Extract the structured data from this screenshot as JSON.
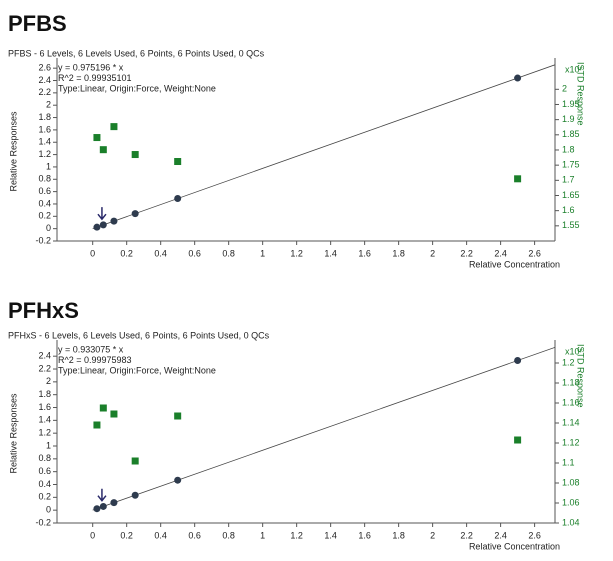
{
  "chart_data": [
    {
      "type": "scatter",
      "title": "PFBS",
      "subtitle": "PFBS - 6 Levels, 6 Levels Used, 6 Points, 6 Points Used, 0 QCs",
      "annotations": [
        "y = 0.975196 * x",
        "R^2 = 0.99935101",
        "Type:Linear, Origin:Force, Weight:None"
      ],
      "x_label": "Relative Concentration",
      "y_label": "Relative Responses",
      "y2_label": "ISTD Response",
      "y2_multiplier": "x10⁷",
      "x": [
        0.025,
        0.0625,
        0.125,
        0.25,
        0.5,
        2.5
      ],
      "series": [
        {
          "color": "#2e3b4e",
          "marker": "circle",
          "values": [
            0.024,
            0.061,
            0.122,
            0.244,
            0.488,
            2.44
          ]
        },
        {
          "color": "#1a7f2a",
          "marker": "square",
          "axis": "y2",
          "values": [
            1.841,
            1.801,
            1.877,
            1.785,
            1.762,
            1.705
          ]
        }
      ],
      "xlim": [
        -0.21,
        2.72
      ],
      "xticks": [
        0,
        0.2,
        0.4,
        0.6,
        0.8,
        1,
        1.2,
        1.4,
        1.6,
        1.8,
        2,
        2.2,
        2.4,
        2.6
      ],
      "ylim": [
        -0.2,
        2.7
      ],
      "yticks": [
        -0.2,
        0,
        0.2,
        0.4,
        0.6,
        0.8,
        1,
        1.2,
        1.4,
        1.6,
        1.8,
        2,
        2.2,
        2.4,
        2.6
      ],
      "y2lim": [
        1.5,
        2.09
      ],
      "y2ticks": [
        1.55,
        1.6,
        1.65,
        1.7,
        1.75,
        1.8,
        1.85,
        1.9,
        1.95,
        2
      ]
    },
    {
      "type": "scatter",
      "title": "PFHxS",
      "subtitle": "PFHxS - 6 Levels, 6 Levels Used, 6 Points, 6 Points Used, 0 QCs",
      "annotations": [
        "y = 0.933075 * x",
        "R^2 = 0.99975983",
        "Type:Linear, Origin:Force, Weight:None"
      ],
      "x_label": "Relative Concentration",
      "y_label": "Relative Responses",
      "y2_label": "ISTD Response",
      "y2_multiplier": "x10⁷",
      "x": [
        0.025,
        0.0625,
        0.125,
        0.25,
        0.5,
        2.5
      ],
      "series": [
        {
          "color": "#2e3b4e",
          "marker": "circle",
          "values": [
            0.023,
            0.058,
            0.117,
            0.233,
            0.467,
            2.333
          ]
        },
        {
          "color": "#1a7f2a",
          "marker": "square",
          "axis": "y2",
          "values": [
            1.138,
            1.155,
            1.149,
            1.102,
            1.147,
            1.123
          ]
        }
      ],
      "xlim": [
        -0.21,
        2.72
      ],
      "xticks": [
        0,
        0.2,
        0.4,
        0.6,
        0.8,
        1,
        1.2,
        1.4,
        1.6,
        1.8,
        2,
        2.2,
        2.4,
        2.6
      ],
      "ylim": [
        -0.2,
        2.59
      ],
      "yticks": [
        -0.2,
        0,
        0.2,
        0.4,
        0.6,
        0.8,
        1,
        1.2,
        1.4,
        1.6,
        1.8,
        2,
        2.2,
        2.4
      ],
      "y2lim": [
        1.04,
        1.219
      ],
      "y2ticks": [
        1.04,
        1.06,
        1.08,
        1.1,
        1.12,
        1.14,
        1.16,
        1.18,
        1.2
      ]
    }
  ]
}
